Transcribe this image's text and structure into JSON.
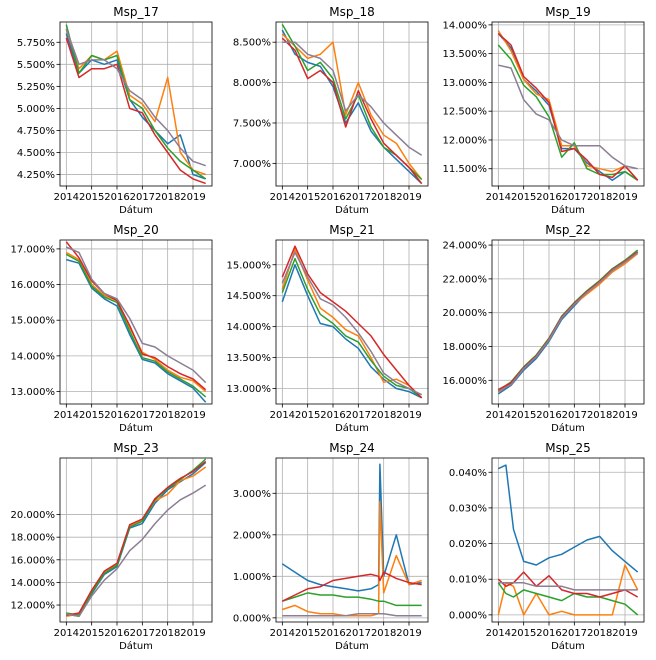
{
  "palette": {
    "s1": "#1f77b4",
    "s2": "#ff7f0e",
    "s3": "#2ca02c",
    "s4": "#d62728",
    "s5": "#8c7e94"
  },
  "chart_data": [
    {
      "type": "line",
      "title": "Msp_17",
      "xlabel": "Dátum",
      "xlim": [
        2013.75,
        2019.75
      ],
      "ylim": [
        4.12,
        5.98
      ],
      "yticks": [
        4.25,
        4.5,
        4.75,
        5.0,
        5.25,
        5.5,
        5.75
      ],
      "ytick_labels": [
        "4.250%",
        "4.500%",
        "4.750%",
        "5.000%",
        "5.250%",
        "5.500%",
        "5.750%"
      ],
      "x": [
        2014,
        2014.5,
        2015,
        2015.5,
        2016,
        2016.5,
        2017,
        2017.5,
        2018,
        2018.5,
        2019,
        2019.5
      ],
      "series": [
        {
          "values": [
            5.85,
            5.4,
            5.55,
            5.5,
            5.55,
            5.1,
            4.9,
            4.75,
            4.6,
            4.7,
            4.25,
            4.2
          ]
        },
        {
          "values": [
            5.9,
            5.45,
            5.6,
            5.55,
            5.65,
            5.15,
            5.05,
            4.85,
            5.35,
            4.5,
            4.3,
            4.25
          ]
        },
        {
          "values": [
            5.95,
            5.4,
            5.6,
            5.55,
            5.6,
            5.1,
            5.0,
            4.75,
            4.55,
            4.4,
            4.3,
            4.2
          ]
        },
        {
          "values": [
            5.8,
            5.35,
            5.45,
            5.45,
            5.5,
            5.0,
            4.95,
            4.7,
            4.5,
            4.3,
            4.2,
            4.15
          ]
        },
        {
          "values": [
            5.9,
            5.5,
            5.55,
            5.55,
            5.45,
            5.2,
            5.1,
            4.9,
            4.75,
            4.55,
            4.4,
            4.35
          ]
        }
      ]
    },
    {
      "type": "line",
      "title": "Msp_18",
      "xlabel": "Dátum",
      "xlim": [
        2013.75,
        2019.75
      ],
      "ylim": [
        6.72,
        8.75
      ],
      "yticks": [
        7.0,
        7.5,
        8.0,
        8.5
      ],
      "ytick_labels": [
        "7.000%",
        "7.500%",
        "8.000%",
        "8.500%"
      ],
      "x": [
        2014,
        2014.5,
        2015,
        2015.5,
        2016,
        2016.5,
        2017,
        2017.5,
        2018,
        2018.5,
        2019,
        2019.5
      ],
      "series": [
        {
          "values": [
            8.65,
            8.35,
            8.25,
            8.2,
            7.95,
            7.5,
            7.75,
            7.4,
            7.2,
            7.05,
            6.9,
            6.75
          ]
        },
        {
          "values": [
            8.6,
            8.45,
            8.3,
            8.35,
            8.5,
            7.6,
            8.0,
            7.6,
            7.35,
            7.25,
            7.0,
            6.8
          ]
        },
        {
          "values": [
            8.72,
            8.45,
            8.15,
            8.25,
            8.05,
            7.55,
            7.85,
            7.45,
            7.2,
            7.1,
            6.95,
            6.8
          ]
        },
        {
          "values": [
            8.55,
            8.4,
            8.05,
            8.15,
            8.0,
            7.45,
            7.9,
            7.55,
            7.25,
            7.1,
            6.95,
            6.75
          ]
        },
        {
          "values": [
            8.5,
            8.5,
            8.35,
            8.3,
            8.15,
            7.65,
            7.85,
            7.7,
            7.5,
            7.35,
            7.2,
            7.1
          ]
        }
      ]
    },
    {
      "type": "line",
      "title": "Msp_19",
      "xlabel": "Dátum",
      "xlim": [
        2013.75,
        2019.75
      ],
      "ylim": [
        11.2,
        14.05
      ],
      "yticks": [
        11.5,
        12.0,
        12.5,
        13.0,
        13.5,
        14.0
      ],
      "ytick_labels": [
        "11.500%",
        "12.000%",
        "12.500%",
        "13.000%",
        "13.500%",
        "14.000%"
      ],
      "x": [
        2014,
        2014.5,
        2015,
        2015.5,
        2016,
        2016.5,
        2017,
        2017.5,
        2018,
        2018.5,
        2019,
        2019.5
      ],
      "series": [
        {
          "values": [
            13.85,
            13.6,
            13.05,
            12.85,
            12.6,
            11.85,
            11.85,
            11.6,
            11.45,
            11.3,
            11.45,
            11.3
          ]
        },
        {
          "values": [
            13.9,
            13.55,
            13.05,
            12.8,
            12.7,
            11.9,
            11.9,
            11.55,
            11.5,
            11.45,
            11.55,
            11.3
          ]
        },
        {
          "values": [
            13.65,
            13.4,
            12.95,
            12.75,
            12.4,
            11.7,
            11.95,
            11.5,
            11.4,
            11.4,
            11.45,
            11.3
          ]
        },
        {
          "values": [
            13.85,
            13.65,
            13.1,
            12.9,
            12.65,
            11.8,
            11.85,
            11.65,
            11.4,
            11.35,
            11.55,
            11.3
          ]
        },
        {
          "values": [
            13.3,
            13.25,
            12.7,
            12.45,
            12.35,
            12.0,
            11.9,
            11.9,
            11.9,
            11.7,
            11.55,
            11.5
          ]
        }
      ]
    },
    {
      "type": "line",
      "title": "Msp_20",
      "xlabel": "Dátum",
      "xlim": [
        2013.75,
        2019.75
      ],
      "ylim": [
        12.65,
        17.25
      ],
      "yticks": [
        13.0,
        14.0,
        15.0,
        16.0,
        17.0
      ],
      "ytick_labels": [
        "13.000%",
        "14.000%",
        "15.000%",
        "16.000%",
        "17.000%"
      ],
      "x": [
        2014,
        2014.5,
        2015,
        2015.5,
        2016,
        2016.5,
        2017,
        2017.5,
        2018,
        2018.5,
        2019,
        2019.5
      ],
      "series": [
        {
          "values": [
            16.7,
            16.6,
            15.9,
            15.6,
            15.4,
            14.6,
            13.9,
            13.8,
            13.5,
            13.3,
            13.1,
            12.7
          ]
        },
        {
          "values": [
            16.9,
            16.7,
            16.0,
            15.7,
            15.55,
            14.8,
            14.1,
            13.9,
            13.6,
            13.4,
            13.3,
            13.0
          ]
        },
        {
          "values": [
            16.85,
            16.65,
            15.95,
            15.65,
            15.5,
            14.7,
            13.95,
            13.85,
            13.55,
            13.35,
            13.15,
            12.85
          ]
        },
        {
          "values": [
            17.2,
            16.75,
            16.1,
            15.75,
            15.55,
            14.85,
            14.05,
            13.95,
            13.7,
            13.5,
            13.35,
            13.05
          ]
        },
        {
          "values": [
            17.05,
            16.9,
            16.15,
            15.75,
            15.6,
            15.05,
            14.35,
            14.25,
            14.0,
            13.8,
            13.6,
            13.25
          ]
        }
      ]
    },
    {
      "type": "line",
      "title": "Msp_21",
      "xlabel": "Dátum",
      "xlim": [
        2013.75,
        2019.75
      ],
      "ylim": [
        12.75,
        15.4
      ],
      "yticks": [
        13.0,
        13.5,
        14.0,
        14.5,
        15.0
      ],
      "ytick_labels": [
        "13.000%",
        "13.500%",
        "14.000%",
        "14.500%",
        "15.000%"
      ],
      "x": [
        2014,
        2014.5,
        2015,
        2015.5,
        2016,
        2016.5,
        2017,
        2017.5,
        2018,
        2018.5,
        2019,
        2019.5
      ],
      "series": [
        {
          "values": [
            14.4,
            15.0,
            14.5,
            14.05,
            14.0,
            13.8,
            13.65,
            13.35,
            13.15,
            13.0,
            12.95,
            12.85
          ]
        },
        {
          "values": [
            14.6,
            15.25,
            14.75,
            14.3,
            14.15,
            13.95,
            13.85,
            13.5,
            13.1,
            13.15,
            13.05,
            12.85
          ]
        },
        {
          "values": [
            14.55,
            15.1,
            14.6,
            14.2,
            14.05,
            13.85,
            13.75,
            13.45,
            13.2,
            13.05,
            13.0,
            12.85
          ]
        },
        {
          "values": [
            14.8,
            15.3,
            14.85,
            14.55,
            14.4,
            14.25,
            14.05,
            13.85,
            13.55,
            13.3,
            13.05,
            12.85
          ]
        },
        {
          "values": [
            14.7,
            15.2,
            14.8,
            14.45,
            14.35,
            14.15,
            13.9,
            13.6,
            13.25,
            13.1,
            13.0,
            12.9
          ]
        }
      ]
    },
    {
      "type": "line",
      "title": "Msp_22",
      "xlabel": "Dátum",
      "xlim": [
        2013.75,
        2019.75
      ],
      "ylim": [
        14.6,
        24.3
      ],
      "yticks": [
        16.0,
        18.0,
        20.0,
        22.0,
        24.0
      ],
      "ytick_labels": [
        "16.000%",
        "18.000%",
        "20.000%",
        "22.000%",
        "24.000%"
      ],
      "x": [
        2014,
        2014.5,
        2015,
        2015.5,
        2016,
        2016.5,
        2017,
        2017.5,
        2018,
        2018.5,
        2019,
        2019.5
      ],
      "series": [
        {
          "values": [
            15.2,
            15.7,
            16.6,
            17.3,
            18.3,
            19.6,
            20.4,
            21.2,
            21.8,
            22.5,
            23.0,
            23.6
          ]
        },
        {
          "values": [
            15.3,
            15.8,
            16.7,
            17.4,
            18.4,
            19.7,
            20.5,
            21.1,
            21.7,
            22.4,
            22.9,
            23.5
          ]
        },
        {
          "values": [
            15.4,
            15.9,
            16.8,
            17.5,
            18.5,
            19.8,
            20.6,
            21.3,
            21.9,
            22.6,
            23.1,
            23.7
          ]
        },
        {
          "values": [
            15.45,
            15.85,
            16.75,
            17.45,
            18.45,
            19.75,
            20.55,
            21.25,
            21.85,
            22.55,
            23.05,
            23.6
          ]
        },
        {
          "values": [
            15.35,
            15.75,
            16.7,
            17.4,
            18.4,
            19.7,
            20.5,
            21.2,
            21.8,
            22.5,
            23.0,
            23.55
          ]
        }
      ]
    },
    {
      "type": "line",
      "title": "Msp_23",
      "xlabel": "Dátum",
      "xlim": [
        2013.75,
        2019.75
      ],
      "ylim": [
        10.5,
        25.0
      ],
      "yticks": [
        12.0,
        14.0,
        16.0,
        18.0,
        20.0
      ],
      "ytick_labels": [
        "12.000%",
        "14.000%",
        "16.000%",
        "18.000%",
        "20.000%"
      ],
      "x": [
        2014,
        2014.5,
        2015,
        2015.5,
        2016,
        2016.5,
        2017,
        2017.5,
        2018,
        2018.5,
        2019,
        2019.5
      ],
      "series": [
        {
          "values": [
            11.2,
            11.0,
            13.0,
            14.7,
            15.4,
            18.8,
            19.2,
            21.0,
            22.2,
            22.9,
            23.6,
            24.6
          ]
        },
        {
          "values": [
            11.0,
            11.2,
            13.2,
            14.9,
            15.6,
            19.0,
            19.5,
            21.2,
            21.8,
            23.0,
            23.4,
            24.2
          ]
        },
        {
          "values": [
            11.3,
            11.1,
            13.1,
            14.8,
            15.5,
            18.9,
            19.4,
            21.3,
            22.3,
            23.1,
            23.9,
            24.9
          ]
        },
        {
          "values": [
            11.1,
            11.3,
            13.3,
            15.0,
            15.7,
            19.1,
            19.6,
            21.4,
            22.4,
            23.2,
            23.8,
            24.7
          ]
        },
        {
          "values": [
            11.2,
            11.0,
            12.8,
            14.2,
            15.2,
            16.8,
            17.8,
            19.2,
            20.4,
            21.3,
            21.9,
            22.6
          ]
        }
      ]
    },
    {
      "type": "line",
      "title": "Msp_24",
      "xlabel": "Dátum",
      "xlim": [
        2013.75,
        2019.75
      ],
      "ylim": [
        -0.1,
        3.85
      ],
      "yticks": [
        0.0,
        1.0,
        2.0,
        3.0
      ],
      "ytick_labels": [
        "0.000%",
        "1.000%",
        "2.000%",
        "3.000%"
      ],
      "x": [
        2014,
        2014.5,
        2015,
        2015.5,
        2016,
        2016.5,
        2017,
        2017.5,
        2017.8,
        2017.85,
        2018,
        2018.5,
        2019,
        2019.5
      ],
      "series": [
        {
          "values": [
            1.3,
            1.1,
            0.9,
            0.8,
            0.75,
            0.7,
            0.65,
            0.7,
            0.8,
            3.7,
            1.0,
            2.0,
            0.8,
            0.85
          ]
        },
        {
          "values": [
            0.2,
            0.3,
            0.15,
            0.1,
            0.1,
            0.05,
            0.05,
            0.05,
            0.1,
            2.8,
            0.6,
            1.5,
            0.8,
            0.9
          ]
        },
        {
          "values": [
            0.4,
            0.5,
            0.6,
            0.55,
            0.55,
            0.5,
            0.5,
            0.45,
            0.4,
            0.4,
            0.4,
            0.3,
            0.3,
            0.3
          ]
        },
        {
          "values": [
            0.4,
            0.55,
            0.7,
            0.75,
            0.9,
            0.95,
            1.0,
            1.05,
            1.0,
            0.9,
            1.1,
            0.95,
            0.85,
            0.8
          ]
        },
        {
          "values": [
            0.05,
            0.05,
            0.05,
            0.05,
            0.05,
            0.05,
            0.1,
            0.1,
            0.1,
            0.1,
            0.1,
            0.05,
            0.05,
            0.05
          ]
        }
      ]
    },
    {
      "type": "line",
      "title": "Msp_25",
      "xlabel": "Dátum",
      "xlim": [
        2013.75,
        2019.75
      ],
      "ylim": [
        -0.002,
        0.044
      ],
      "yticks": [
        0.0,
        0.01,
        0.02,
        0.03,
        0.04
      ],
      "ytick_labels": [
        "0.000%",
        "0.010%",
        "0.020%",
        "0.030%",
        "0.040%"
      ],
      "x": [
        2014,
        2014.3,
        2014.6,
        2015,
        2015.5,
        2016,
        2016.5,
        2017,
        2017.5,
        2018,
        2018.5,
        2019,
        2019.5
      ],
      "series": [
        {
          "values": [
            0.041,
            0.042,
            0.024,
            0.015,
            0.014,
            0.016,
            0.017,
            0.019,
            0.021,
            0.022,
            0.018,
            0.015,
            0.012
          ]
        },
        {
          "values": [
            0.0,
            0.009,
            0.008,
            0.0,
            0.006,
            0.0,
            0.001,
            0.0,
            0.0,
            0.0,
            0.0,
            0.014,
            0.007
          ]
        },
        {
          "values": [
            0.009,
            0.006,
            0.005,
            0.007,
            0.006,
            0.005,
            0.004,
            0.006,
            0.005,
            0.005,
            0.004,
            0.003,
            0.0
          ]
        },
        {
          "values": [
            0.01,
            0.008,
            0.009,
            0.012,
            0.008,
            0.011,
            0.007,
            0.006,
            0.006,
            0.005,
            0.006,
            0.007,
            0.005
          ]
        },
        {
          "values": [
            0.009,
            0.009,
            0.009,
            0.009,
            0.008,
            0.008,
            0.008,
            0.007,
            0.007,
            0.007,
            0.007,
            0.007,
            0.007
          ]
        }
      ]
    }
  ]
}
